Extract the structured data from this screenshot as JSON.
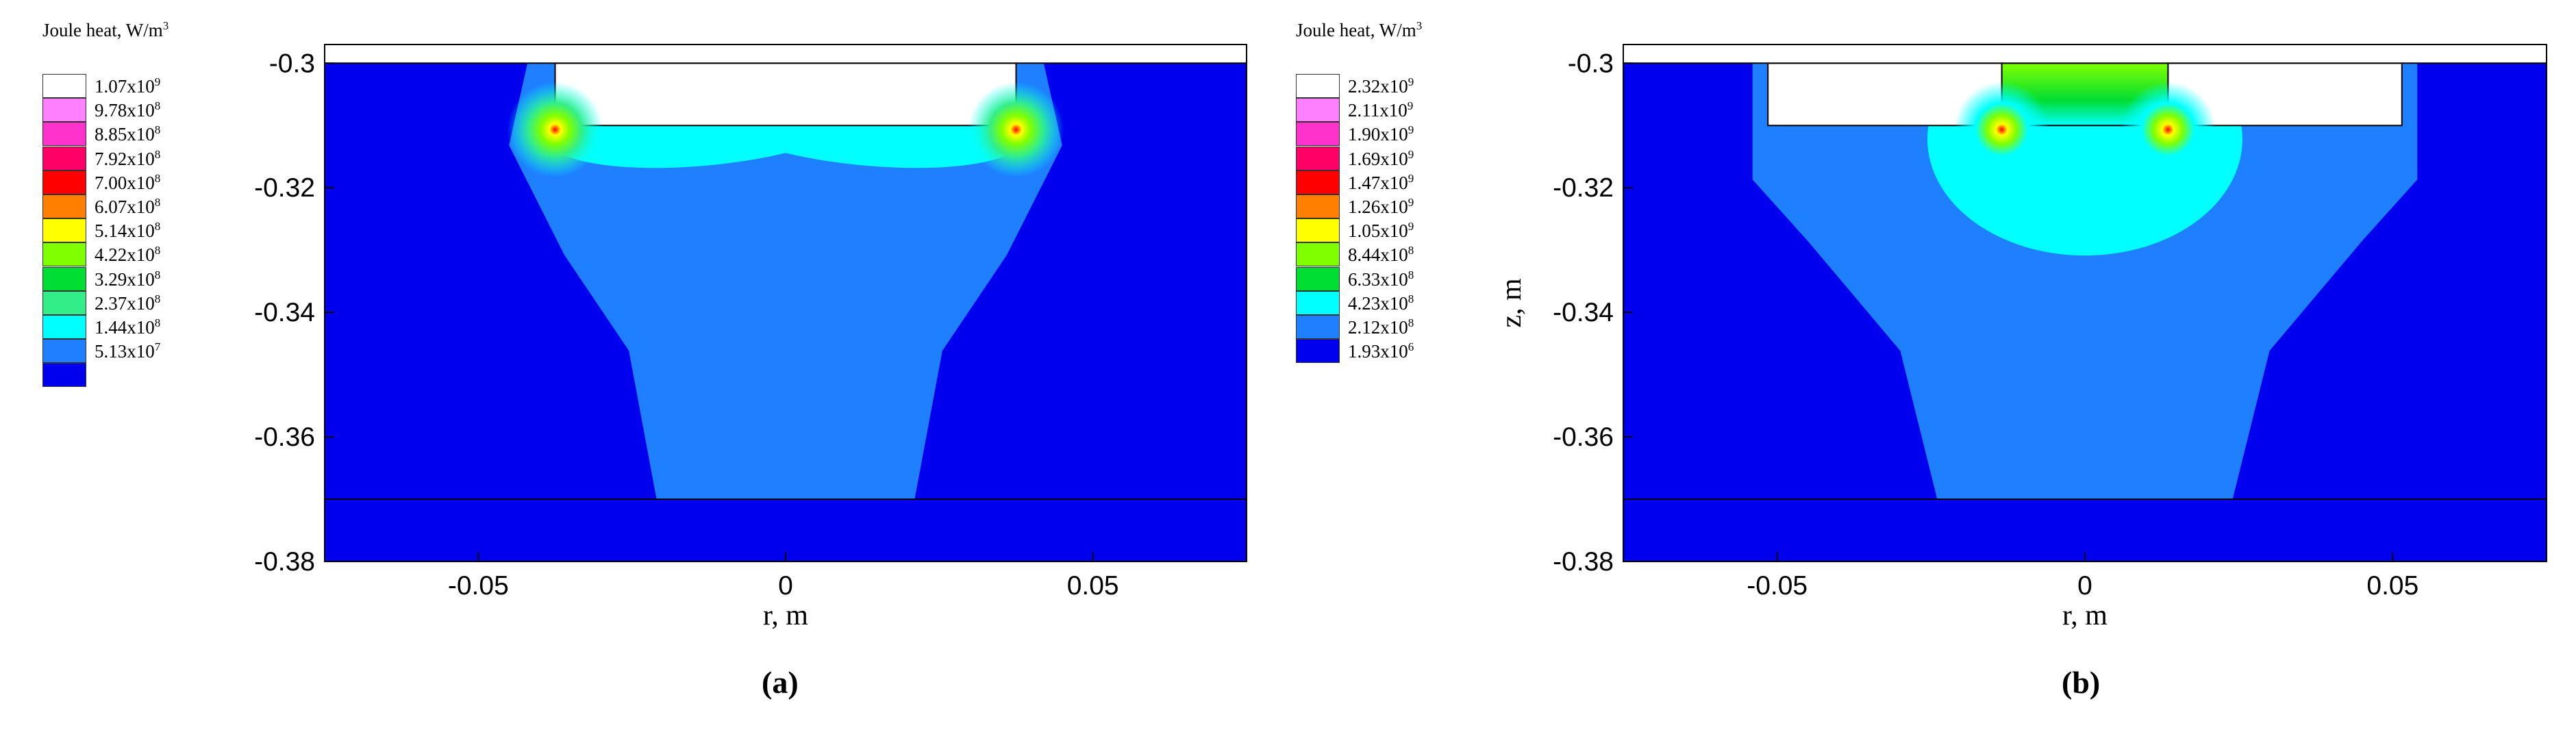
{
  "chart_data": [
    {
      "type": "heatmap",
      "panel_label": "(a)",
      "xlabel": "r, m",
      "ylabel": "",
      "xlim": [
        -0.075,
        0.075
      ],
      "ylim": [
        -0.38,
        -0.297
      ],
      "x_ticks": [
        -0.05,
        0,
        0.05
      ],
      "x_tick_labels": [
        "-0.05",
        "0",
        "0.05"
      ],
      "y_ticks": [
        -0.3,
        -0.32,
        -0.34,
        -0.36,
        -0.38
      ],
      "y_tick_labels": [
        "-0.3",
        "-0.32",
        "-0.34",
        "-0.36",
        "-0.38"
      ],
      "legend": {
        "title": "Joule heat, W/m",
        "title_sup": "3",
        "placement": "left",
        "levels": [
          {
            "base": "1.07x10",
            "exp": "9",
            "color": "#ffffff"
          },
          {
            "base": "9.78x10",
            "exp": "8",
            "color": "#ff80ff"
          },
          {
            "base": "8.85x10",
            "exp": "8",
            "color": "#ff33cc"
          },
          {
            "base": "7.92x10",
            "exp": "8",
            "color": "#ff0066"
          },
          {
            "base": "7.00x10",
            "exp": "8",
            "color": "#ff0000"
          },
          {
            "base": "6.07x10",
            "exp": "8",
            "color": "#ff8000"
          },
          {
            "base": "5.14x10",
            "exp": "8",
            "color": "#ffff00"
          },
          {
            "base": "4.22x10",
            "exp": "8",
            "color": "#80ff00"
          },
          {
            "base": "3.29x10",
            "exp": "8",
            "color": "#00dd33"
          },
          {
            "base": "2.37x10",
            "exp": "8",
            "color": "#33ee88"
          },
          {
            "base": "1.44x10",
            "exp": "8",
            "color": "#00ffff"
          },
          {
            "base": "5.13x10",
            "exp": "7",
            "color": "#1e7fff"
          },
          {
            "base": "",
            "exp": "",
            "color": "#0000ee"
          }
        ]
      },
      "geometry": {
        "top_z": -0.3,
        "slot_bottom_z": -0.31,
        "slot_r": [
          -0.0375,
          0.0375
        ],
        "interface_z": -0.37,
        "hotspots": [
          [
            -0.0375,
            -0.31
          ],
          [
            0.0375,
            -0.31
          ]
        ]
      }
    },
    {
      "type": "heatmap",
      "panel_label": "(b)",
      "xlabel": "r, m",
      "ylabel": "z, m",
      "xlim": [
        -0.075,
        0.075
      ],
      "ylim": [
        -0.38,
        -0.297
      ],
      "x_ticks": [
        -0.05,
        0,
        0.05
      ],
      "x_tick_labels": [
        "-0.05",
        "0",
        "0.05"
      ],
      "y_ticks": [
        -0.3,
        -0.32,
        -0.34,
        -0.36,
        -0.38
      ],
      "y_tick_labels": [
        "-0.3",
        "-0.32",
        "-0.34",
        "-0.36",
        "-0.38"
      ],
      "legend": {
        "title": "Joule heat, W/m",
        "title_sup": "3",
        "placement": "left",
        "levels": [
          {
            "base": "2.32x10",
            "exp": "9",
            "color": "#ffffff"
          },
          {
            "base": "2.11x10",
            "exp": "9",
            "color": "#ff80ff"
          },
          {
            "base": "1.90x10",
            "exp": "9",
            "color": "#ff33cc"
          },
          {
            "base": "1.69x10",
            "exp": "9",
            "color": "#ff0066"
          },
          {
            "base": "1.47x10",
            "exp": "9",
            "color": "#ff0000"
          },
          {
            "base": "1.26x10",
            "exp": "9",
            "color": "#ff8000"
          },
          {
            "base": "1.05x10",
            "exp": "9",
            "color": "#ffff00"
          },
          {
            "base": "8.44x10",
            "exp": "8",
            "color": "#80ff00"
          },
          {
            "base": "6.33x10",
            "exp": "8",
            "color": "#00dd33"
          },
          {
            "base": "4.23x10",
            "exp": "8",
            "color": "#00ffff"
          },
          {
            "base": "2.12x10",
            "exp": "8",
            "color": "#1e7fff"
          },
          {
            "base": "1.93x10",
            "exp": "6",
            "color": "#0000ee"
          }
        ]
      },
      "geometry": {
        "top_z": -0.3,
        "slot_bottom_z": -0.31,
        "slot_r": [
          -0.0515,
          0.0515
        ],
        "post_r": [
          -0.0135,
          0.0135
        ],
        "interface_z": -0.37,
        "hotspots": [
          [
            -0.0135,
            -0.31
          ],
          [
            0.0135,
            -0.31
          ]
        ]
      }
    }
  ]
}
